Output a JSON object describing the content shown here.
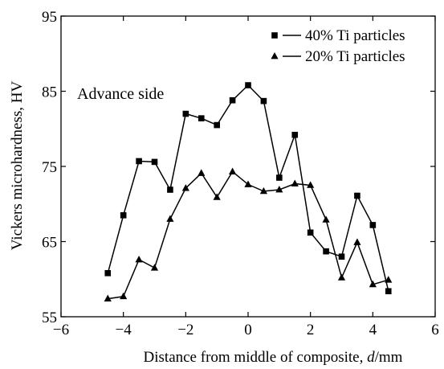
{
  "chart_data": {
    "type": "line",
    "title": "",
    "xlabel_prefix": "Distance from middle of composite, ",
    "xlabel_var": "d",
    "xlabel_unit": "/mm",
    "ylabel": "Vickers microhardness, HV",
    "xlim": [
      -6,
      6
    ],
    "ylim": [
      55,
      95
    ],
    "xticks": [
      -6,
      -4,
      -2,
      0,
      2,
      4,
      6
    ],
    "yticks": [
      55,
      65,
      75,
      85,
      95
    ],
    "xtick_labels": [
      "−6",
      "−4",
      "−2",
      "0",
      "2",
      "4",
      "6"
    ],
    "ytick_labels": [
      "55",
      "65",
      "75",
      "85",
      "95"
    ],
    "legend_position": "top-right",
    "grid": false,
    "annotation": "Advance side",
    "series": [
      {
        "name": "40% Ti particles",
        "marker": "square",
        "x": [
          -4.5,
          -4.0,
          -3.5,
          -3.0,
          -2.5,
          -2.0,
          -1.5,
          -1.0,
          -0.5,
          0.0,
          0.5,
          1.0,
          1.5,
          2.0,
          2.5,
          3.0,
          3.5,
          4.0,
          4.5
        ],
        "y": [
          60.8,
          68.5,
          75.7,
          75.6,
          71.9,
          82.0,
          81.4,
          80.5,
          83.8,
          85.8,
          83.7,
          73.5,
          79.2,
          66.2,
          63.7,
          63.0,
          71.1,
          67.2,
          58.4
        ]
      },
      {
        "name": "20% Ti particles",
        "marker": "triangle",
        "x": [
          -4.5,
          -4.0,
          -3.5,
          -3.0,
          -2.5,
          -2.0,
          -1.5,
          -1.0,
          -0.5,
          0.0,
          0.5,
          1.0,
          1.5,
          2.0,
          2.5,
          3.0,
          3.5,
          4.0,
          4.5
        ],
        "y": [
          57.4,
          57.7,
          62.6,
          61.5,
          68.0,
          72.1,
          74.1,
          70.9,
          74.3,
          72.6,
          71.7,
          71.9,
          72.7,
          72.5,
          67.9,
          60.2,
          64.9,
          59.3,
          59.9
        ]
      }
    ]
  }
}
